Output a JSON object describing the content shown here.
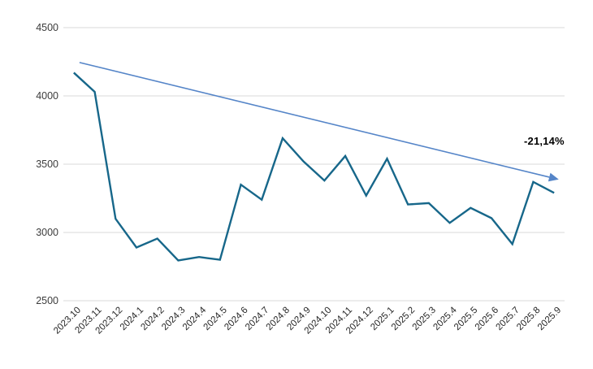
{
  "chart_data": {
    "type": "line",
    "title": "",
    "categories": [
      "2023.10",
      "2023.11",
      "2023.12",
      "2024.1",
      "2024.2",
      "2024.3",
      "2024.4",
      "2024.5",
      "2024.6",
      "2024.7",
      "2024.8",
      "2024.9",
      "2024.10",
      "2024.11",
      "2024.12",
      "2025.1",
      "2025.2",
      "2025.3",
      "2025.4",
      "2025.5",
      "2025.6",
      "2025.7",
      "2025.8",
      "2025.9"
    ],
    "series": [
      {
        "color": "#17678a",
        "values": [
          4170,
          4030,
          3100,
          2890,
          2955,
          2795,
          2820,
          2800,
          3350,
          3240,
          3690,
          3520,
          3380,
          3560,
          3270,
          3540,
          3205,
          3215,
          3070,
          3180,
          3105,
          2915,
          3370,
          3290
        ]
      }
    ],
    "trendline": {
      "color": "#5585c8",
      "start_value": 4245,
      "end_value": 3405,
      "style": "arrow"
    },
    "annotation": {
      "text": "-21,14%",
      "color": "#000000"
    },
    "y_axis": {
      "min": 2500,
      "max": 4500,
      "tick_step": 500,
      "ticks": [
        4500,
        4000,
        3500,
        3000,
        2500
      ],
      "label_color": "#3c3c3c"
    },
    "x_axis": {
      "label_color": "#262626",
      "label_rotation_deg": -45
    },
    "grid": {
      "show": true,
      "color": "#d9d9d9"
    },
    "legend": "none",
    "background": "#ffffff"
  }
}
